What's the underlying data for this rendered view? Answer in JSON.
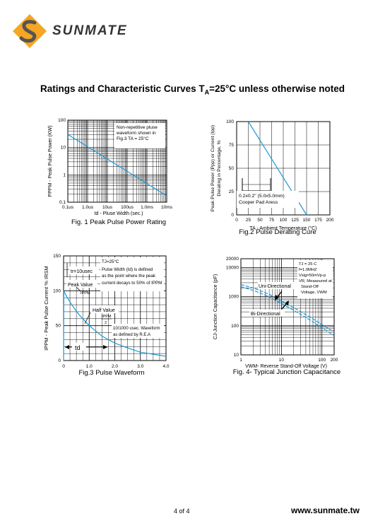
{
  "brand": {
    "name": "SUNMATE",
    "accent": "#f5a623",
    "logo_dark": "#333333"
  },
  "heading": {
    "pre": "Ratings and Characteristic Curves T",
    "sub": "A",
    "post": "=25°C unless otherwise noted"
  },
  "fig1": {
    "caption": "Fig. 1 Peak Pulse Power Rating",
    "ylabel": "PPPM - Peak Pulse Power (KW)",
    "xlabel": "td - Pluse Width (sec.)",
    "notes": [
      "Non-repetitive pluse",
      "waveform shown in",
      "Fig.3 TA = 25°C"
    ]
  },
  "fig2": {
    "caption": "Fig.2 Pulse Derating Cure",
    "ylabel1": "Peak Pulse Power (Ppp) or Current (Ipp)",
    "ylabel2": "Derating in Percentage, %",
    "xlabel": "TA - Ambient Temperature (°C)",
    "notes": [
      "0.2x0.2\" (5.0x5.0mm)",
      "Cooper Pad Aress"
    ]
  },
  "fig3": {
    "caption": "Fig.3 Pulse Waveform",
    "ylabel": "IPPM - Peak Pulse Current % IRSM",
    "notes": [
      "TJ=25°C",
      "Pulse Width (td) is defined",
      "as the point where the peak",
      "current decays to 50% of IPPM"
    ],
    "tr": "tr=10usec",
    "peak": "Peak Value",
    "peak_sub": "IPPM",
    "half": "Half Value",
    "half_sub": "IPPM",
    "half_den": "2",
    "wave": [
      "10/1000 usec. Waveform",
      "as defined by R.E.A"
    ],
    "td": "td"
  },
  "fig4": {
    "caption": "Fig. 4- Typical Junction Capacitance",
    "ylabel": "CJ-Junction Capacitance (pF)",
    "xlabel": "VWM- Reverse Stand-Off Voltage (V)",
    "notes": [
      "TJ = 25 C",
      "f=1.0MHZ",
      "Vsig=50mVp-p",
      "VR, Meaasured at",
      "Stand-Off",
      "Voltage, VWM"
    ],
    "uni": "Uni-Directional",
    "bi": "Bi-Directional"
  },
  "chart_data": [
    {
      "type": "line",
      "title": "Fig. 1 Peak Pulse Power Rating",
      "xscale": "log",
      "yscale": "log",
      "x_ticks": [
        "0.1us",
        "1.0us",
        "10us",
        "100us",
        "1.0ms",
        "10ms"
      ],
      "y_ticks": [
        "0.1",
        "1",
        "10",
        "100"
      ],
      "xlim": [
        "0.1us",
        "10ms"
      ],
      "ylim": [
        0.1,
        100
      ],
      "series": [
        {
          "x_us": [
            0.1,
            10000
          ],
          "y": [
            30,
            0.17
          ]
        }
      ]
    },
    {
      "type": "line",
      "title": "Fig.2 Pulse Derating Cure",
      "x_ticks": [
        "0",
        "25",
        "50",
        "75",
        "100",
        "125",
        "150",
        "175",
        "200"
      ],
      "y_ticks": [
        "0",
        "25",
        "50",
        "75",
        "100"
      ],
      "xlim": [
        0,
        200
      ],
      "ylim": [
        0,
        100
      ],
      "series": [
        {
          "x": [
            25,
            150
          ],
          "y": [
            100,
            0
          ]
        }
      ]
    },
    {
      "type": "line",
      "title": "Fig.3 Pulse Waveform",
      "x_ticks": [
        "0",
        "1.0",
        "2.0",
        "3.0",
        "4.0"
      ],
      "y_ticks": [
        "0",
        "50",
        "100",
        "150"
      ],
      "xlim": [
        0,
        4
      ],
      "ylim": [
        0,
        150
      ],
      "series": [
        {
          "x": [
            0,
            0.01,
            0.1,
            0.3,
            0.6,
            1.0,
            1.5,
            2.0,
            2.5,
            3.0,
            3.5,
            4.0
          ],
          "y": [
            0,
            100,
            93,
            81,
            66,
            50,
            35,
            25,
            18,
            12,
            9,
            6
          ]
        }
      ]
    },
    {
      "type": "line",
      "title": "Fig. 4- Typical Junction Capacitance",
      "xscale": "log",
      "yscale": "log",
      "x_ticks": [
        "1",
        "10",
        "100",
        "200"
      ],
      "y_ticks": [
        "10",
        "100",
        "1000",
        "10000",
        "20000"
      ],
      "xlim": [
        1,
        200
      ],
      "ylim": [
        10,
        20000
      ],
      "series": [
        {
          "name": "Uni-Directional",
          "x": [
            1,
            2,
            5,
            10,
            20,
            50,
            100,
            200
          ],
          "y": [
            2600,
            2000,
            1200,
            700,
            420,
            200,
            110,
            60
          ]
        },
        {
          "name": "Bi-Directional",
          "x": [
            1,
            2,
            5,
            10,
            20,
            50,
            100,
            200
          ],
          "y": [
            2200,
            1650,
            1000,
            580,
            340,
            160,
            85,
            46
          ]
        }
      ]
    }
  ],
  "footer": {
    "page": "4 of 4",
    "site": "www.sunmate.tw"
  }
}
